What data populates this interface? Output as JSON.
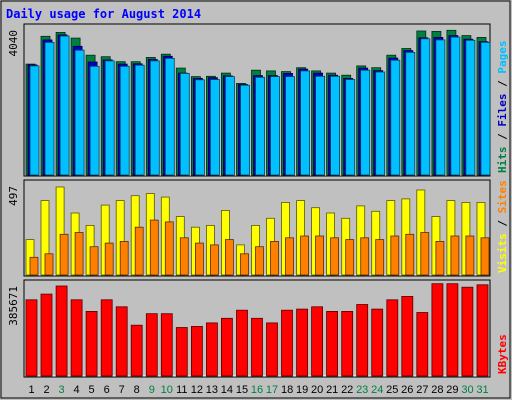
{
  "chart_data": {
    "title": "Daily usage for August 2014",
    "type": "bar",
    "days": [
      "1",
      "2",
      "3",
      "4",
      "5",
      "6",
      "7",
      "8",
      "9",
      "10",
      "11",
      "12",
      "13",
      "14",
      "15",
      "16",
      "17",
      "18",
      "19",
      "20",
      "21",
      "22",
      "23",
      "24",
      "25",
      "26",
      "27",
      "28",
      "29",
      "30",
      "31"
    ],
    "weekend_days": [
      "3",
      "9",
      "10",
      "16",
      "17",
      "23",
      "24",
      "30",
      "31"
    ],
    "panels": [
      {
        "id": "top",
        "max_label": "4040",
        "ymax": 4040,
        "series": [
          {
            "name": "Hits",
            "color": "#008040",
            "values": [
              3110,
              3890,
              4000,
              3840,
              3360,
              3320,
              3180,
              3180,
              3300,
              3390,
              3000,
              2760,
              2770,
              2860,
              2570,
              2940,
              2920,
              2900,
              3010,
              2920,
              2860,
              2800,
              3060,
              3010,
              3360,
              3550,
              4040,
              4030,
              4060,
              3910,
              3860
            ]
          },
          {
            "name": "Files",
            "color": "#0000c0",
            "values": [
              3090,
              3790,
              3930,
              3610,
              3170,
              3230,
              3110,
              3120,
              3240,
              3330,
              2860,
              2710,
              2730,
              2780,
              2540,
              2790,
              2790,
              2850,
              2970,
              2860,
              2800,
              2710,
              3000,
              2930,
              3280,
              3490,
              3850,
              3860,
              3910,
              3810,
              3740
            ]
          },
          {
            "name": "Pages",
            "color": "#00c0ff",
            "values": [
              3060,
              3720,
              3900,
              3500,
              3050,
              3200,
              3050,
              3080,
              3200,
              3270,
              2850,
              2670,
              2680,
              2760,
              2520,
              2740,
              2760,
              2760,
              2920,
              2770,
              2770,
              2680,
              2940,
              2890,
              3220,
              3440,
              3820,
              3790,
              3870,
              3780,
              3720
            ]
          }
        ],
        "labels": [
          {
            "text": "Hits",
            "color": "#008040"
          },
          {
            "text": "Files",
            "color": "#0000c0"
          },
          {
            "text": "Pages",
            "color": "#00c0ff"
          }
        ]
      },
      {
        "id": "middle",
        "max_label": "497",
        "ymax": 497,
        "series": [
          {
            "name": "Visits",
            "color": "#ffff00",
            "values": [
              200,
              420,
              497,
              350,
              280,
              395,
              420,
              448,
              460,
              440,
              330,
              270,
              280,
              365,
              170,
              280,
              320,
              410,
              420,
              380,
              350,
              320,
              390,
              360,
              420,
              430,
              480,
              330,
              420,
              410,
              410
            ]
          },
          {
            "name": "Sites",
            "color": "#ff8000",
            "values": [
              100,
              120,
              230,
              240,
              160,
              180,
              190,
              270,
              310,
              300,
              210,
              180,
              170,
              200,
              120,
              160,
              190,
              210,
              220,
              220,
              210,
              200,
              210,
              200,
              220,
              230,
              240,
              190,
              220,
              220,
              210
            ]
          }
        ],
        "labels": [
          {
            "text": "Visits",
            "color": "#ffff00"
          },
          {
            "text": "Sites",
            "color": "#ff8000"
          }
        ]
      },
      {
        "id": "bottom",
        "max_label": "385671",
        "ymax": 385671,
        "series": [
          {
            "name": "KBytes",
            "color": "#ff0000",
            "values": [
              330000,
              355000,
              390000,
              330000,
              280000,
              330000,
              300000,
              220000,
              270000,
              270000,
              210000,
              215000,
              230000,
              250000,
              285000,
              250000,
              230000,
              285000,
              290000,
              300000,
              280000,
              280000,
              310000,
              290000,
              330000,
              345000,
              275000,
              400000,
              400000,
              385000,
              395000
            ]
          }
        ],
        "labels": [
          {
            "text": "KBytes",
            "color": "#ff0000"
          }
        ]
      }
    ]
  }
}
